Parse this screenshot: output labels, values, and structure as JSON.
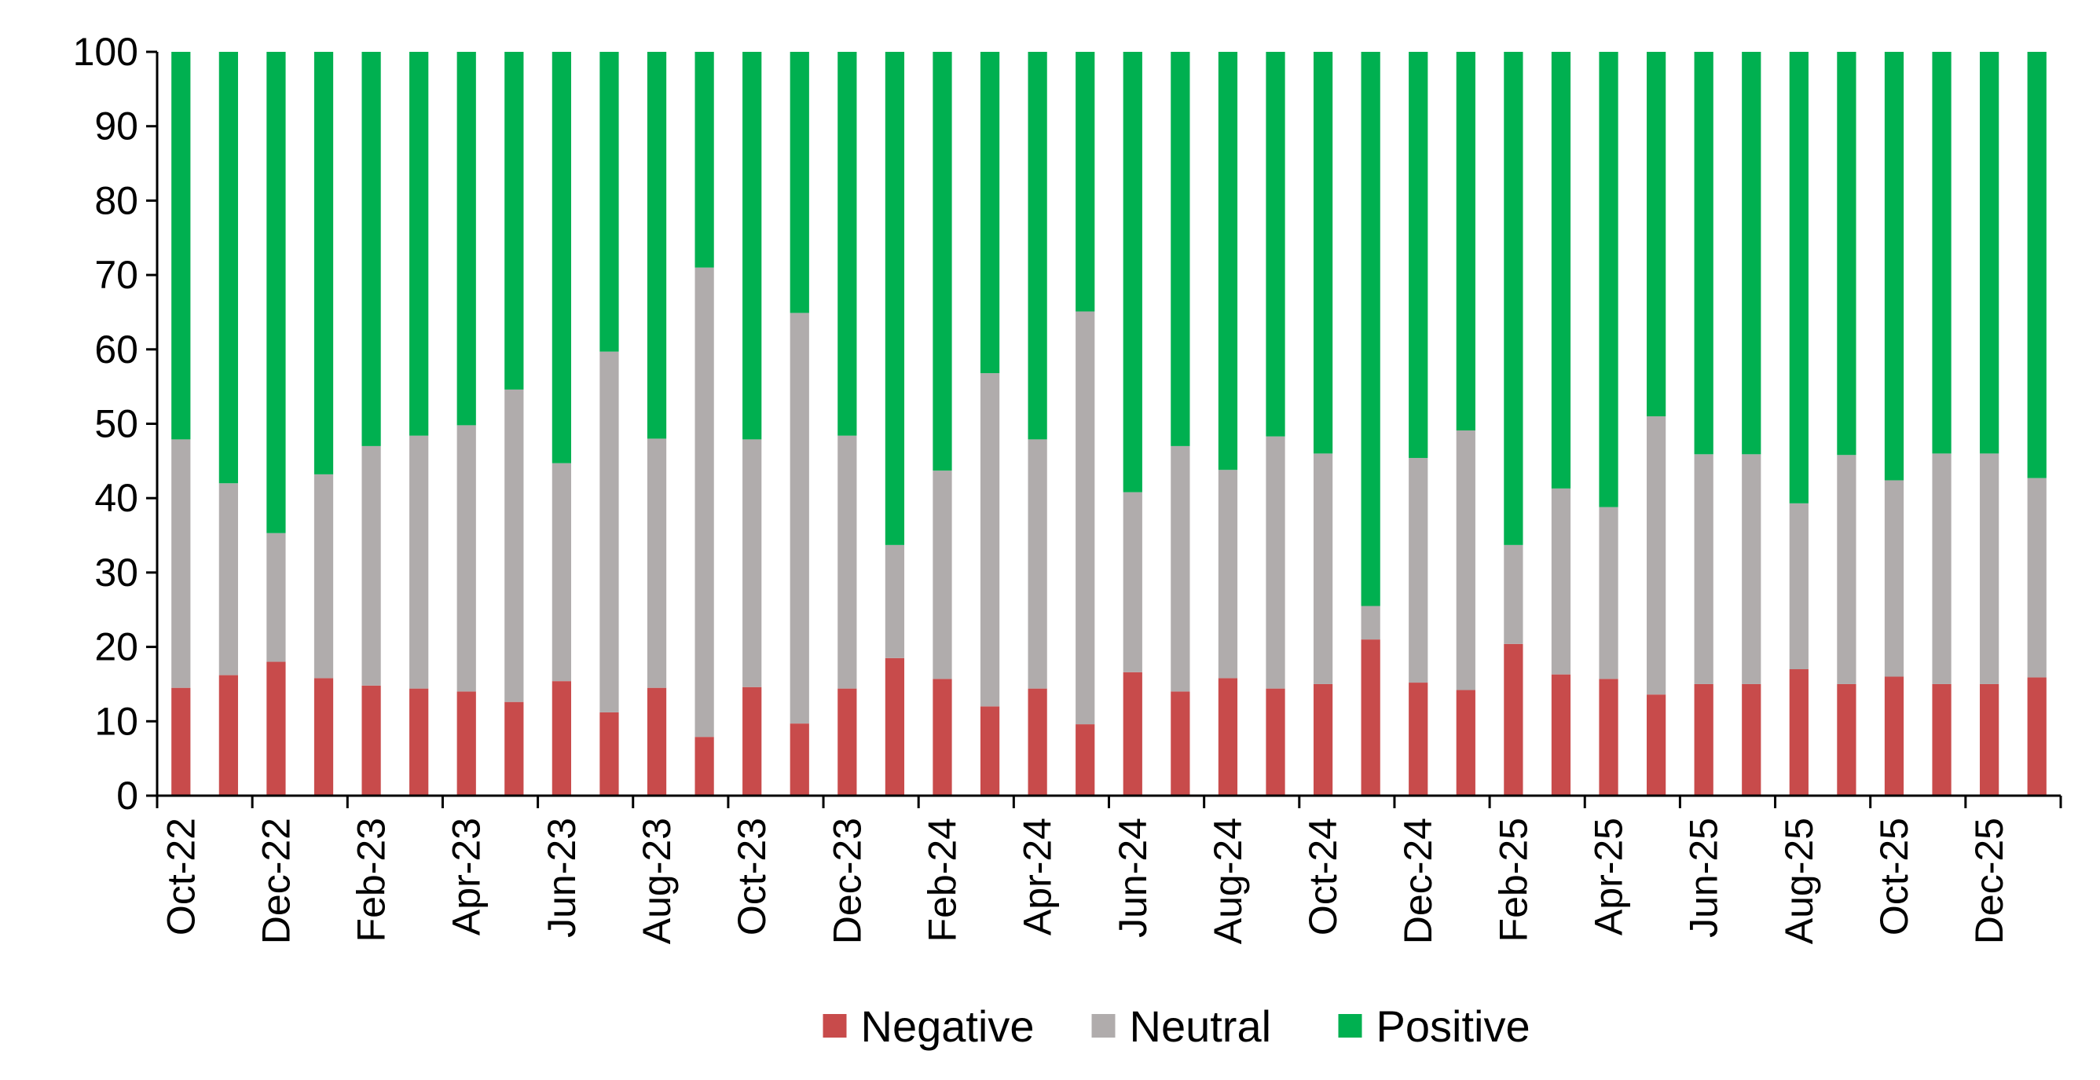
{
  "chart_data": {
    "type": "bar",
    "stacked": true,
    "title": "",
    "xlabel": "",
    "ylabel": "",
    "ylim": [
      0,
      100
    ],
    "yticks": [
      0,
      10,
      20,
      30,
      40,
      50,
      60,
      70,
      80,
      90,
      100
    ],
    "grid": false,
    "legend": "bottom",
    "categories": [
      "Oct-22",
      "Nov-22",
      "Dec-22",
      "Jan-23",
      "Feb-23",
      "Mar-23",
      "Apr-23",
      "May-23",
      "Jun-23",
      "Jul-23",
      "Aug-23",
      "Sep-23",
      "Oct-23",
      "Nov-23",
      "Dec-23",
      "Jan-24",
      "Feb-24",
      "Mar-24",
      "Apr-24",
      "May-24",
      "Jun-24",
      "Jul-24",
      "Aug-24",
      "Sep-24",
      "Oct-24",
      "Nov-24",
      "Dec-24",
      "Jan-25",
      "Feb-25",
      "Mar-25",
      "Apr-25",
      "May-25",
      "Jun-25",
      "Jul-25",
      "Aug-25",
      "Sep-25",
      "Oct-25",
      "Nov-25",
      "Dec-25",
      "Jan-26"
    ],
    "xtick_labels": [
      "Oct-22",
      "Dec-22",
      "Feb-23",
      "Apr-23",
      "Jun-23",
      "Aug-23",
      "Oct-23",
      "Dec-23",
      "Feb-24",
      "Apr-24",
      "Jun-24",
      "Aug-24",
      "Oct-24",
      "Dec-24",
      "Feb-25",
      "Apr-25",
      "Jun-25",
      "Aug-25",
      "Oct-25",
      "Dec-25"
    ],
    "series": [
      {
        "name": "Negative",
        "color": "#c84b4b",
        "values": [
          14.5,
          16.2,
          18.0,
          15.8,
          14.8,
          14.4,
          14.0,
          12.6,
          15.4,
          11.2,
          14.5,
          7.9,
          14.6,
          9.7,
          14.4,
          18.5,
          15.7,
          12.0,
          14.4,
          9.6,
          16.6,
          14.0,
          15.8,
          14.4,
          15.0,
          21.0,
          15.2,
          14.2,
          20.4,
          16.3,
          15.7,
          13.6,
          15.0,
          15.0,
          17.0,
          15.0,
          16.0,
          15.0,
          15.0,
          15.9
        ]
      },
      {
        "name": "Neutral",
        "color": "#b0acac",
        "values": [
          33.4,
          25.8,
          17.3,
          27.4,
          32.2,
          34.0,
          35.8,
          42.0,
          29.3,
          48.5,
          33.5,
          63.1,
          33.3,
          55.2,
          34.0,
          15.2,
          28.0,
          44.8,
          33.5,
          55.5,
          24.2,
          33.0,
          28.0,
          33.9,
          31.0,
          4.5,
          30.2,
          34.9,
          13.3,
          25.0,
          23.1,
          37.4,
          30.9,
          30.9,
          22.3,
          30.8,
          26.4,
          31.0,
          31.0,
          26.8
        ]
      },
      {
        "name": "Positive",
        "color": "#00b050",
        "values": [
          52.1,
          58.0,
          64.7,
          56.8,
          53.0,
          51.6,
          50.2,
          45.4,
          55.3,
          40.3,
          52.0,
          29.0,
          52.1,
          35.1,
          51.6,
          66.3,
          56.3,
          43.2,
          52.1,
          34.9,
          59.2,
          53.0,
          56.2,
          51.7,
          54.0,
          74.5,
          54.6,
          50.9,
          66.3,
          58.7,
          61.2,
          49.0,
          54.1,
          54.1,
          60.7,
          54.2,
          57.6,
          54.0,
          54.0,
          57.3
        ]
      }
    ]
  }
}
